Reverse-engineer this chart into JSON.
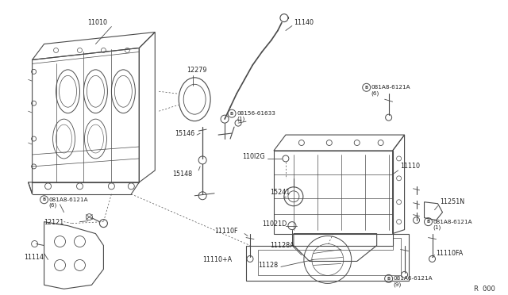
{
  "bg_color": "#ffffff",
  "line_color": "#4a4a4a",
  "ref_code": "R : 000",
  "figsize": [
    6.4,
    3.72
  ],
  "dpi": 100,
  "parts": {
    "block_label": "11010",
    "seal_label": "12279",
    "dipstick_label": "11140",
    "sensor1_label": "B08156-61633",
    "sensor1_qty": "(1)",
    "bolt1_label": "B081A8-6121A",
    "bolt1_qty": "(6)",
    "dipstick2_label": "110I2G",
    "tube1_label": "15146",
    "tube2_label": "15148",
    "pump_label": "15241",
    "plug_label": "11021D",
    "pan_label": "11110",
    "drain_label": "12121",
    "shield_bolt_label": "B081A8-6121A",
    "shield_bolt_qty": "(6)",
    "shield_label": "11114",
    "pan_bolt_label": "11110F",
    "gasket_label": "11128A",
    "pan_lower_label": "11110+A",
    "gasket2_label": "11128",
    "bracket_label": "11251N",
    "bolt2_label": "B081A8-6121A",
    "bolt2_qty": "(1)",
    "panfa_label": "11110FA",
    "drain_bolt_label": "B081A6-6121A",
    "drain_bolt_qty": "(9)"
  }
}
